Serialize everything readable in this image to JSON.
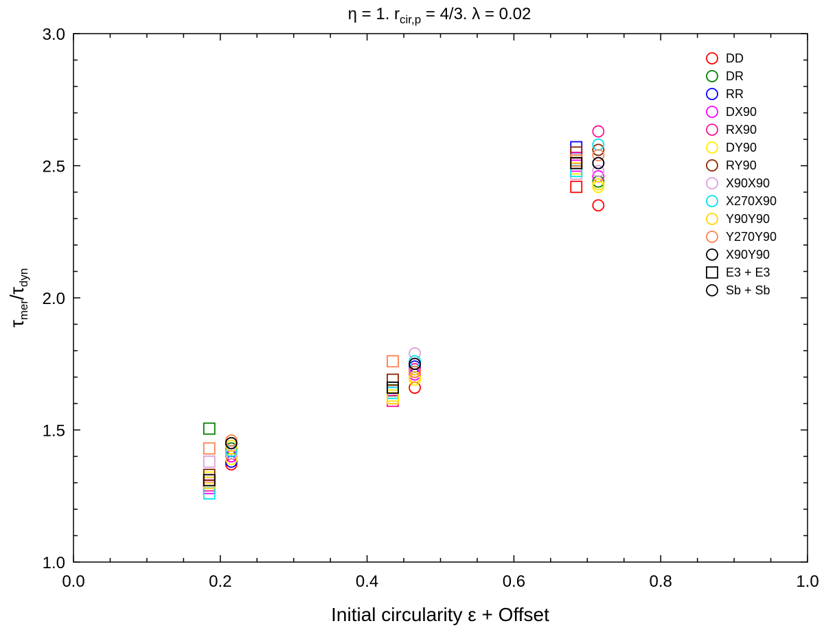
{
  "chart_data": {
    "type": "scatter",
    "title": {
      "eta_part": "η = 1. r",
      "rcir_sub": "cir,p",
      "rest": " = 4/3. λ = 0.02"
    },
    "xlabel": "Initial circularity ε + Offset",
    "ylabel": {
      "tau1": "τ",
      "sub1": "mer",
      "slash": "/τ",
      "sub2": "dyn"
    },
    "xlim": [
      0.0,
      1.0
    ],
    "ylim": [
      1.0,
      3.0
    ],
    "x_ticks": [
      "0.0",
      "0.2",
      "0.4",
      "0.6",
      "0.8",
      "1.0"
    ],
    "y_ticks": [
      "1.0",
      "1.5",
      "2.0",
      "2.5",
      "3.0"
    ],
    "series": [
      {
        "name": "DD",
        "color": "#ff0000",
        "square": [
          [
            0.185,
            1.31
          ],
          [
            0.435,
            1.62
          ],
          [
            0.685,
            2.42
          ]
        ],
        "circle": [
          [
            0.215,
            1.37
          ],
          [
            0.465,
            1.66
          ],
          [
            0.715,
            2.35
          ]
        ]
      },
      {
        "name": "DR",
        "color": "#008000",
        "square": [
          [
            0.185,
            1.505
          ],
          [
            0.435,
            1.65
          ],
          [
            0.685,
            2.52
          ]
        ],
        "circle": [
          [
            0.215,
            1.43
          ],
          [
            0.465,
            1.72
          ],
          [
            0.715,
            2.44
          ]
        ]
      },
      {
        "name": "RR",
        "color": "#0000ff",
        "square": [
          [
            0.185,
            1.3
          ],
          [
            0.435,
            1.64
          ],
          [
            0.685,
            2.57
          ]
        ],
        "circle": [
          [
            0.215,
            1.38
          ],
          [
            0.465,
            1.74
          ],
          [
            0.715,
            2.51
          ]
        ]
      },
      {
        "name": "DX90",
        "color": "#ff00ff",
        "square": [
          [
            0.185,
            1.28
          ],
          [
            0.435,
            1.63
          ],
          [
            0.685,
            2.5
          ]
        ],
        "circle": [
          [
            0.215,
            1.4
          ],
          [
            0.465,
            1.71
          ],
          [
            0.715,
            2.46
          ]
        ]
      },
      {
        "name": "RX90",
        "color": "#ff1493",
        "square": [
          [
            0.185,
            1.29
          ],
          [
            0.435,
            1.61
          ],
          [
            0.685,
            2.53
          ]
        ],
        "circle": [
          [
            0.215,
            1.42
          ],
          [
            0.465,
            1.73
          ],
          [
            0.715,
            2.63
          ]
        ]
      },
      {
        "name": "DY90",
        "color": "#ffee00",
        "square": [
          [
            0.185,
            1.32
          ],
          [
            0.435,
            1.63
          ],
          [
            0.685,
            2.49
          ]
        ],
        "circle": [
          [
            0.215,
            1.39
          ],
          [
            0.465,
            1.69
          ],
          [
            0.715,
            2.42
          ]
        ]
      },
      {
        "name": "RY90",
        "color": "#8b2500",
        "square": [
          [
            0.185,
            1.33
          ],
          [
            0.435,
            1.69
          ],
          [
            0.685,
            2.55
          ]
        ],
        "circle": [
          [
            0.215,
            1.45
          ],
          [
            0.465,
            1.75
          ],
          [
            0.715,
            2.56
          ]
        ]
      },
      {
        "name": "X90X90",
        "color": "#dda0dd",
        "square": [
          [
            0.185,
            1.38
          ],
          [
            0.435,
            1.66
          ],
          [
            0.685,
            2.47
          ]
        ],
        "circle": [
          [
            0.215,
            1.41
          ],
          [
            0.465,
            1.79
          ],
          [
            0.715,
            2.48
          ]
        ]
      },
      {
        "name": "X270X90",
        "color": "#00e5ee",
        "square": [
          [
            0.185,
            1.26
          ],
          [
            0.435,
            1.64
          ],
          [
            0.685,
            2.48
          ]
        ],
        "circle": [
          [
            0.215,
            1.42
          ],
          [
            0.465,
            1.76
          ],
          [
            0.715,
            2.58
          ]
        ]
      },
      {
        "name": "Y90Y90",
        "color": "#ffd700",
        "square": [
          [
            0.185,
            1.3
          ],
          [
            0.435,
            1.62
          ],
          [
            0.685,
            2.51
          ]
        ],
        "circle": [
          [
            0.215,
            1.44
          ],
          [
            0.465,
            1.7
          ],
          [
            0.715,
            2.43
          ]
        ]
      },
      {
        "name": "Y270Y90",
        "color": "#ff7f50",
        "square": [
          [
            0.185,
            1.43
          ],
          [
            0.435,
            1.76
          ],
          [
            0.685,
            2.52
          ]
        ],
        "circle": [
          [
            0.215,
            1.46
          ],
          [
            0.465,
            1.72
          ],
          [
            0.715,
            2.54
          ]
        ]
      },
      {
        "name": "X90Y90",
        "color": "#000000",
        "square": [
          [
            0.185,
            1.31
          ],
          [
            0.435,
            1.66
          ],
          [
            0.685,
            2.51
          ]
        ],
        "circle": [
          [
            0.215,
            1.45
          ],
          [
            0.465,
            1.75
          ],
          [
            0.715,
            2.51
          ]
        ]
      }
    ],
    "legend": [
      {
        "label": "DD",
        "color": "#ff0000",
        "marker": "circle"
      },
      {
        "label": "DR",
        "color": "#008000",
        "marker": "circle"
      },
      {
        "label": "RR",
        "color": "#0000ff",
        "marker": "circle"
      },
      {
        "label": "DX90",
        "color": "#ff00ff",
        "marker": "circle"
      },
      {
        "label": "RX90",
        "color": "#ff1493",
        "marker": "circle"
      },
      {
        "label": "DY90",
        "color": "#ffee00",
        "marker": "circle"
      },
      {
        "label": "RY90",
        "color": "#8b2500",
        "marker": "circle"
      },
      {
        "label": "X90X90",
        "color": "#dda0dd",
        "marker": "circle"
      },
      {
        "label": "X270X90",
        "color": "#00e5ee",
        "marker": "circle"
      },
      {
        "label": "Y90Y90",
        "color": "#ffd700",
        "marker": "circle"
      },
      {
        "label": "Y270Y90",
        "color": "#ff7f50",
        "marker": "circle"
      },
      {
        "label": "X90Y90",
        "color": "#000000",
        "marker": "circle"
      },
      {
        "label": "E3 + E3",
        "color": "#000000",
        "marker": "square"
      },
      {
        "label": "Sb + Sb",
        "color": "#000000",
        "marker": "circle"
      }
    ],
    "legend_position": "top-right"
  }
}
